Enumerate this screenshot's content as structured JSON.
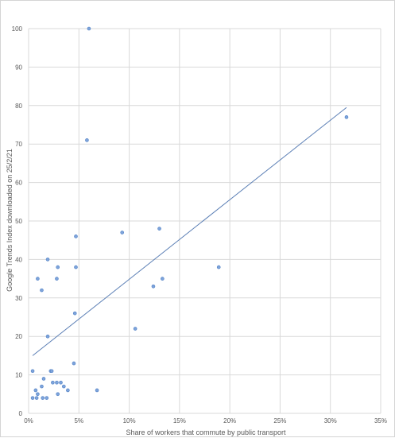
{
  "chart_data": {
    "type": "scatter",
    "title": "",
    "xlabel": "Share of workers that commute by public transport",
    "ylabel": "Google Trends Index downloaded on 25/2/21",
    "xlim": [
      0,
      0.35
    ],
    "ylim": [
      0,
      100
    ],
    "x_ticks": [
      0,
      0.05,
      0.1,
      0.15,
      0.2,
      0.25,
      0.3,
      0.35
    ],
    "x_tick_labels": [
      "0%",
      "5%",
      "10%",
      "15%",
      "20%",
      "25%",
      "30%",
      "35%"
    ],
    "y_ticks": [
      0,
      10,
      20,
      30,
      40,
      50,
      60,
      70,
      80,
      90,
      100
    ],
    "y_tick_labels": [
      "0",
      "10",
      "20",
      "30",
      "40",
      "50",
      "60",
      "70",
      "80",
      "90",
      "100"
    ],
    "grid": true,
    "legend": "none",
    "trendline": {
      "type": "linear",
      "x": [
        0.004,
        0.316
      ],
      "y": [
        15,
        79.5
      ]
    },
    "points": [
      {
        "x": 0.06,
        "y": 100
      },
      {
        "x": 0.058,
        "y": 71
      },
      {
        "x": 0.316,
        "y": 77
      },
      {
        "x": 0.093,
        "y": 47
      },
      {
        "x": 0.13,
        "y": 48
      },
      {
        "x": 0.047,
        "y": 46
      },
      {
        "x": 0.019,
        "y": 40
      },
      {
        "x": 0.047,
        "y": 38
      },
      {
        "x": 0.029,
        "y": 38
      },
      {
        "x": 0.189,
        "y": 38
      },
      {
        "x": 0.009,
        "y": 35
      },
      {
        "x": 0.028,
        "y": 35
      },
      {
        "x": 0.133,
        "y": 35
      },
      {
        "x": 0.124,
        "y": 33
      },
      {
        "x": 0.013,
        "y": 32
      },
      {
        "x": 0.046,
        "y": 26
      },
      {
        "x": 0.106,
        "y": 22
      },
      {
        "x": 0.019,
        "y": 20
      },
      {
        "x": 0.045,
        "y": 13
      },
      {
        "x": 0.004,
        "y": 11
      },
      {
        "x": 0.022,
        "y": 11
      },
      {
        "x": 0.023,
        "y": 11
      },
      {
        "x": 0.015,
        "y": 9
      },
      {
        "x": 0.024,
        "y": 8
      },
      {
        "x": 0.028,
        "y": 8
      },
      {
        "x": 0.032,
        "y": 8
      },
      {
        "x": 0.013,
        "y": 7
      },
      {
        "x": 0.035,
        "y": 7
      },
      {
        "x": 0.068,
        "y": 6
      },
      {
        "x": 0.007,
        "y": 6
      },
      {
        "x": 0.039,
        "y": 6
      },
      {
        "x": 0.009,
        "y": 5
      },
      {
        "x": 0.029,
        "y": 5
      },
      {
        "x": 0.004,
        "y": 4
      },
      {
        "x": 0.008,
        "y": 4
      },
      {
        "x": 0.014,
        "y": 4
      },
      {
        "x": 0.018,
        "y": 4
      }
    ],
    "colors": {
      "marker_fill": "#7ea4db",
      "marker_stroke": "#4f7fc4",
      "trendline": "#5b7fb5",
      "grid": "#d9d9d9",
      "text": "#595959"
    }
  }
}
